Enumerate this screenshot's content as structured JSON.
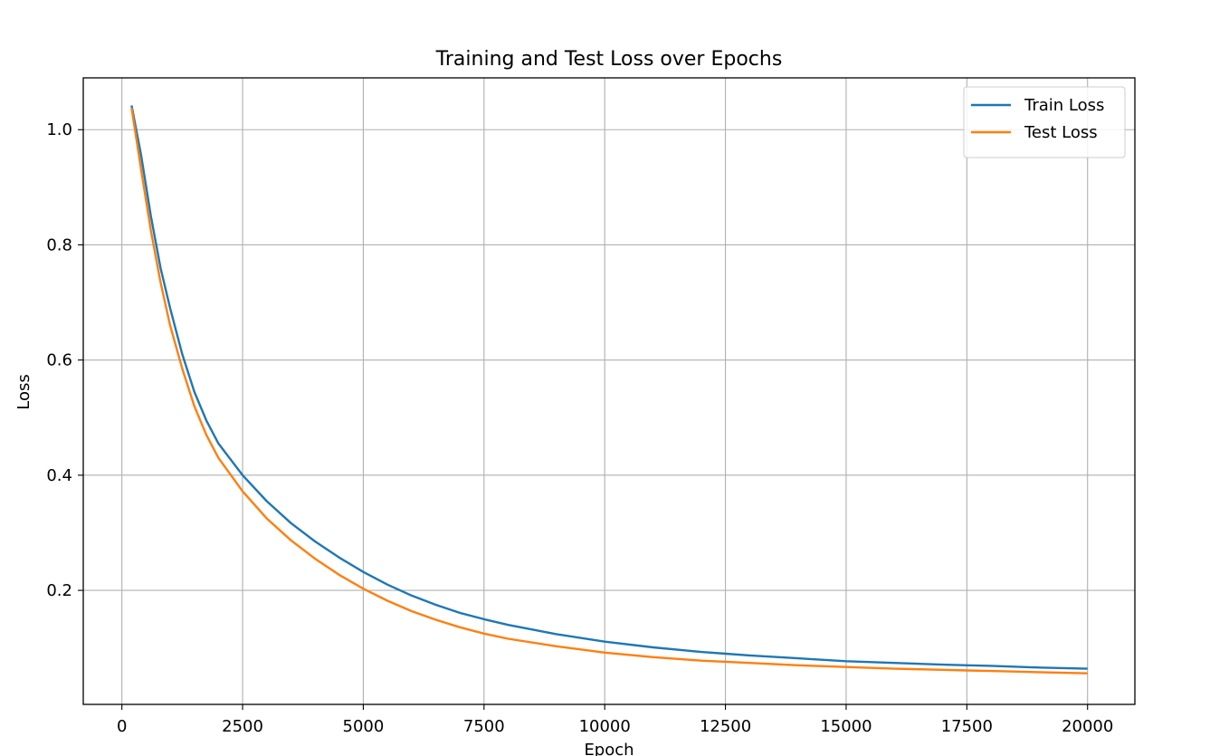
{
  "chart_data": {
    "type": "line",
    "title": "Training and Test Loss over Epochs",
    "xlabel": "Epoch",
    "ylabel": "Loss",
    "xlim": [
      -800,
      20980
    ],
    "ylim": [
      0.002,
      1.09
    ],
    "xticks": [
      0,
      2500,
      5000,
      7500,
      10000,
      12500,
      15000,
      17500,
      20000
    ],
    "yticks": [
      0.2,
      0.4,
      0.6,
      0.8,
      1.0
    ],
    "xtick_labels": [
      "0",
      "2500",
      "5000",
      "7500",
      "10000",
      "12500",
      "15000",
      "17500",
      "20000"
    ],
    "ytick_labels": [
      "0.2",
      "0.4",
      "0.6",
      "0.8",
      "1.0"
    ],
    "grid": true,
    "legend_position": "top-right",
    "x": [
      200,
      400,
      600,
      800,
      1000,
      1250,
      1500,
      1750,
      2000,
      2500,
      3000,
      3500,
      4000,
      4500,
      5000,
      5500,
      6000,
      6500,
      7000,
      7500,
      8000,
      9000,
      10000,
      11000,
      12000,
      12500,
      13000,
      14000,
      15000,
      16000,
      17000,
      17500,
      18000,
      19000,
      20000
    ],
    "series": [
      {
        "name": "Train Loss",
        "color": "#1f77b4",
        "values": [
          1.042,
          0.955,
          0.85,
          0.76,
          0.69,
          0.61,
          0.545,
          0.495,
          0.455,
          0.4,
          0.355,
          0.317,
          0.285,
          0.257,
          0.232,
          0.21,
          0.191,
          0.175,
          0.161,
          0.15,
          0.14,
          0.124,
          0.111,
          0.101,
          0.093,
          0.09,
          0.087,
          0.082,
          0.077,
          0.074,
          0.071,
          0.07,
          0.069,
          0.066,
          0.064
        ]
      },
      {
        "name": "Test Loss",
        "color": "#ff7f0e",
        "values": [
          1.038,
          0.93,
          0.825,
          0.735,
          0.66,
          0.585,
          0.52,
          0.47,
          0.43,
          0.372,
          0.325,
          0.287,
          0.255,
          0.227,
          0.203,
          0.182,
          0.164,
          0.149,
          0.136,
          0.125,
          0.116,
          0.103,
          0.092,
          0.084,
          0.078,
          0.076,
          0.074,
          0.07,
          0.067,
          0.064,
          0.062,
          0.061,
          0.06,
          0.058,
          0.056
        ]
      }
    ]
  }
}
